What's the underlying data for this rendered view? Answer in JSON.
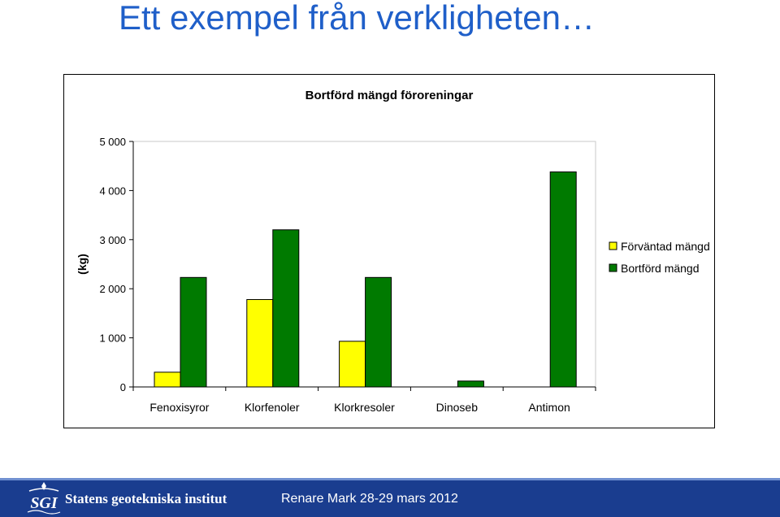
{
  "slide": {
    "title": "Ett exempel från verkligheten…"
  },
  "chart_data": {
    "type": "bar",
    "title": "Bortförd mängd föroreningar",
    "ylabel": "(kg)",
    "xlabel": "",
    "ylim": [
      0,
      5000
    ],
    "yticks": [
      0,
      1000,
      2000,
      3000,
      4000,
      5000
    ],
    "ytick_labels": [
      "0",
      "1 000",
      "2 000",
      "3 000",
      "4 000",
      "5 000"
    ],
    "categories": [
      "Fenoxisyror",
      "Klorfenoler",
      "Klorkresoler",
      "Dinoseb",
      "Antimon"
    ],
    "series": [
      {
        "name": "Förväntad mängd",
        "color": "#ffff00",
        "values": [
          300,
          1780,
          930,
          0,
          0
        ]
      },
      {
        "name": "Bortförd mängd",
        "color": "#007a00",
        "values": [
          2230,
          3200,
          2230,
          120,
          4380
        ]
      }
    ],
    "grid": false,
    "legend_position": "right"
  },
  "footer": {
    "logo_text": "SGI",
    "organization": "Statens geotekniska institut",
    "event": "Renare Mark 28-29 mars 2012"
  },
  "colors": {
    "title_blue": "#1f5fc9",
    "footer_blue": "#1a3d8f"
  }
}
